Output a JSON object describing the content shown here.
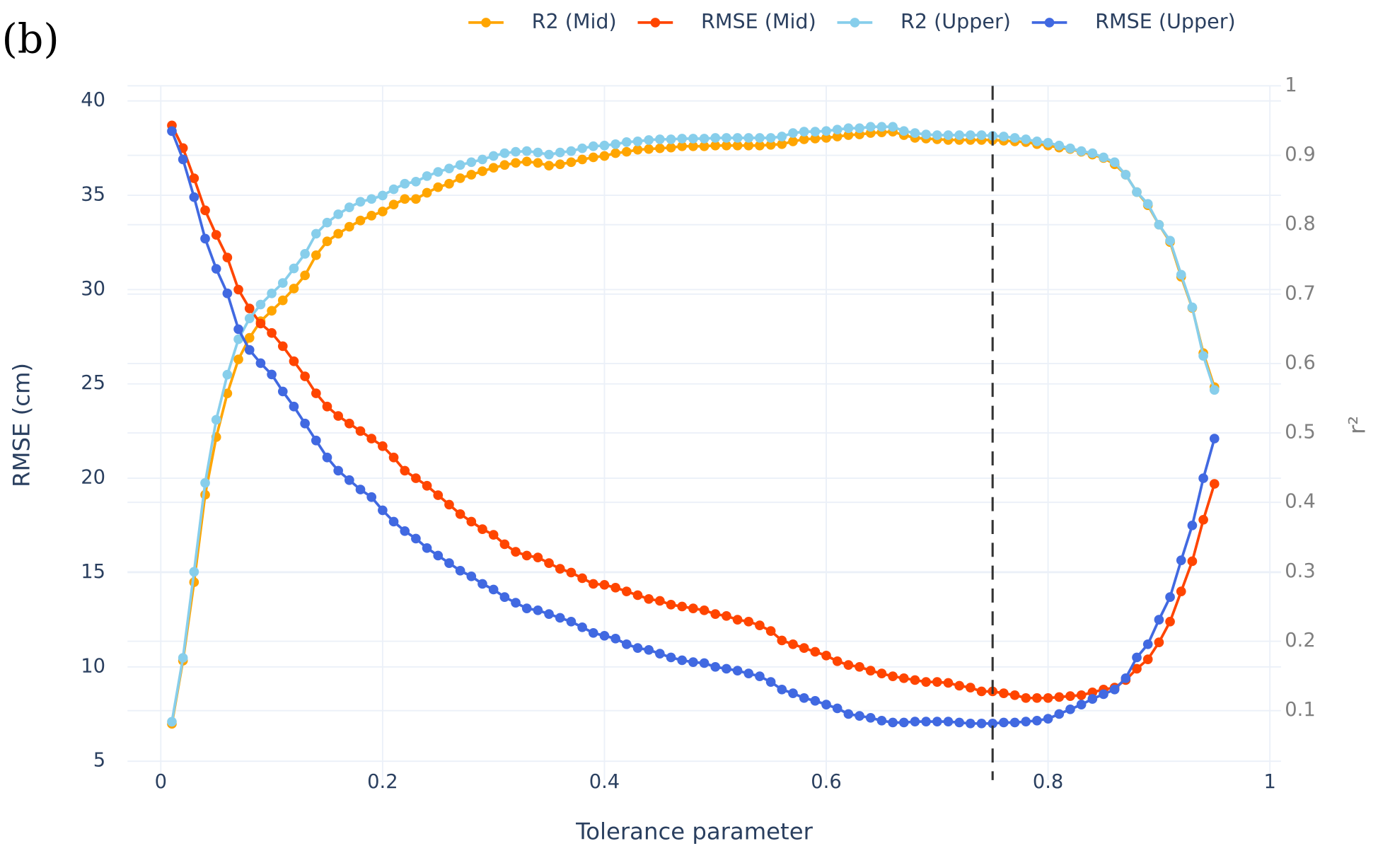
{
  "chart_data": {
    "type": "line",
    "panel_label": "(b)",
    "xlabel": "Tolerance parameter",
    "ylabel": "RMSE (cm)",
    "y2label": "r²",
    "xlim": [
      -0.03,
      1.01
    ],
    "xticks": [
      0,
      0.2,
      0.4,
      0.6,
      0.8,
      1
    ],
    "ylim": [
      4,
      40.8
    ],
    "yticks": [
      5,
      10,
      15,
      20,
      25,
      30,
      35,
      40
    ],
    "y2lim": [
      0,
      1
    ],
    "y2ticks": [
      0.1,
      0.2,
      0.3,
      0.4,
      0.5,
      0.6,
      0.7,
      0.8,
      0.9,
      1
    ],
    "grid": true,
    "legend": "top",
    "vline_x": 0.75,
    "x": [
      0.01,
      0.02,
      0.03,
      0.04,
      0.05,
      0.06,
      0.07,
      0.08,
      0.09,
      0.1,
      0.11,
      0.12,
      0.13,
      0.14,
      0.15,
      0.16,
      0.17,
      0.18,
      0.19,
      0.2,
      0.21,
      0.22,
      0.23,
      0.24,
      0.25,
      0.26,
      0.27,
      0.28,
      0.29,
      0.3,
      0.31,
      0.32,
      0.33,
      0.34,
      0.35,
      0.36,
      0.37,
      0.38,
      0.39,
      0.4,
      0.41,
      0.42,
      0.43,
      0.44,
      0.45,
      0.46,
      0.47,
      0.48,
      0.49,
      0.5,
      0.51,
      0.52,
      0.53,
      0.54,
      0.55,
      0.56,
      0.57,
      0.58,
      0.59,
      0.6,
      0.61,
      0.62,
      0.63,
      0.64,
      0.65,
      0.66,
      0.67,
      0.68,
      0.69,
      0.7,
      0.71,
      0.72,
      0.73,
      0.74,
      0.75,
      0.76,
      0.77,
      0.78,
      0.79,
      0.8,
      0.81,
      0.82,
      0.83,
      0.84,
      0.85,
      0.86,
      0.87,
      0.88,
      0.89,
      0.9,
      0.91,
      0.92,
      0.93,
      0.94,
      0.95
    ],
    "series": [
      {
        "name": "R2 (Mid)",
        "color": "#FFA500",
        "axis": "y2",
        "values": [
          0.081,
          0.172,
          0.285,
          0.411,
          0.494,
          0.557,
          0.606,
          0.637,
          0.661,
          0.676,
          0.691,
          0.708,
          0.727,
          0.756,
          0.776,
          0.787,
          0.797,
          0.806,
          0.813,
          0.819,
          0.829,
          0.837,
          0.837,
          0.846,
          0.854,
          0.859,
          0.867,
          0.872,
          0.877,
          0.882,
          0.886,
          0.889,
          0.891,
          0.889,
          0.885,
          0.887,
          0.89,
          0.894,
          0.897,
          0.899,
          0.903,
          0.905,
          0.908,
          0.909,
          0.91,
          0.911,
          0.913,
          0.913,
          0.913,
          0.914,
          0.914,
          0.914,
          0.914,
          0.914,
          0.915,
          0.916,
          0.92,
          0.923,
          0.924,
          0.925,
          0.927,
          0.929,
          0.93,
          0.932,
          0.933,
          0.934,
          0.929,
          0.925,
          0.924,
          0.923,
          0.922,
          0.922,
          0.922,
          0.922,
          0.922,
          0.921,
          0.92,
          0.919,
          0.916,
          0.914,
          0.911,
          0.909,
          0.905,
          0.901,
          0.896,
          0.887,
          0.872,
          0.847,
          0.828,
          0.8,
          0.775,
          0.725,
          0.68,
          0.615,
          0.566
        ]
      },
      {
        "name": "RMSE (Mid)",
        "color": "#FF4500",
        "values": [
          38.7,
          37.5,
          35.9,
          34.2,
          32.9,
          31.7,
          30.0,
          29.0,
          28.2,
          27.7,
          27.0,
          26.2,
          25.4,
          24.5,
          23.8,
          23.3,
          22.9,
          22.5,
          22.1,
          21.7,
          21.1,
          20.4,
          20.0,
          19.6,
          19.1,
          18.6,
          18.1,
          17.7,
          17.3,
          17.0,
          16.5,
          16.1,
          15.9,
          15.8,
          15.5,
          15.2,
          15.0,
          14.7,
          14.4,
          14.35,
          14.2,
          14.0,
          13.8,
          13.6,
          13.5,
          13.3,
          13.2,
          13.1,
          13.0,
          12.8,
          12.7,
          12.5,
          12.4,
          12.2,
          11.9,
          11.4,
          11.2,
          11.0,
          10.8,
          10.6,
          10.3,
          10.1,
          10.0,
          9.8,
          9.65,
          9.5,
          9.4,
          9.3,
          9.2,
          9.2,
          9.15,
          9.0,
          8.9,
          8.7,
          8.7,
          8.6,
          8.5,
          8.35,
          8.35,
          8.35,
          8.4,
          8.45,
          8.5,
          8.65,
          8.8,
          8.9,
          9.3,
          9.9,
          10.4,
          11.3,
          12.4,
          14.0,
          15.6,
          17.8,
          19.7
        ]
      },
      {
        "name": "R2 (Upper)",
        "color": "#87CEEB",
        "axis": "y2",
        "values": [
          0.084,
          0.176,
          0.3,
          0.428,
          0.519,
          0.584,
          0.635,
          0.665,
          0.685,
          0.701,
          0.716,
          0.737,
          0.758,
          0.787,
          0.803,
          0.815,
          0.825,
          0.833,
          0.837,
          0.842,
          0.851,
          0.859,
          0.862,
          0.87,
          0.876,
          0.881,
          0.886,
          0.89,
          0.894,
          0.899,
          0.903,
          0.905,
          0.906,
          0.904,
          0.901,
          0.904,
          0.906,
          0.91,
          0.913,
          0.914,
          0.916,
          0.919,
          0.92,
          0.922,
          0.923,
          0.923,
          0.924,
          0.924,
          0.924,
          0.925,
          0.925,
          0.925,
          0.925,
          0.925,
          0.925,
          0.927,
          0.932,
          0.934,
          0.934,
          0.935,
          0.937,
          0.939,
          0.939,
          0.941,
          0.941,
          0.941,
          0.935,
          0.932,
          0.93,
          0.929,
          0.929,
          0.929,
          0.929,
          0.929,
          0.928,
          0.927,
          0.925,
          0.923,
          0.92,
          0.918,
          0.914,
          0.91,
          0.906,
          0.903,
          0.897,
          0.89,
          0.872,
          0.847,
          0.83,
          0.8,
          0.777,
          0.728,
          0.681,
          0.611,
          0.562
        ]
      },
      {
        "name": "RMSE (Upper)",
        "color": "#4169E1",
        "values": [
          38.4,
          36.9,
          34.9,
          32.7,
          31.1,
          29.8,
          27.9,
          26.8,
          26.1,
          25.5,
          24.6,
          23.8,
          22.9,
          22.0,
          21.1,
          20.4,
          19.9,
          19.4,
          19.0,
          18.3,
          17.7,
          17.2,
          16.8,
          16.3,
          15.9,
          15.5,
          15.1,
          14.8,
          14.4,
          14.1,
          13.7,
          13.4,
          13.1,
          13.0,
          12.8,
          12.6,
          12.4,
          12.1,
          11.8,
          11.65,
          11.5,
          11.2,
          11.0,
          10.9,
          10.7,
          10.5,
          10.35,
          10.25,
          10.2,
          10.0,
          9.9,
          9.8,
          9.65,
          9.5,
          9.2,
          8.8,
          8.6,
          8.35,
          8.2,
          8.0,
          7.8,
          7.5,
          7.4,
          7.3,
          7.15,
          7.05,
          7.05,
          7.1,
          7.1,
          7.1,
          7.1,
          7.05,
          7.0,
          7.0,
          7.0,
          7.05,
          7.05,
          7.1,
          7.15,
          7.25,
          7.5,
          7.75,
          8.0,
          8.3,
          8.55,
          8.8,
          9.4,
          10.5,
          11.2,
          12.5,
          13.7,
          15.65,
          17.5,
          20.0,
          22.1
        ]
      }
    ]
  }
}
